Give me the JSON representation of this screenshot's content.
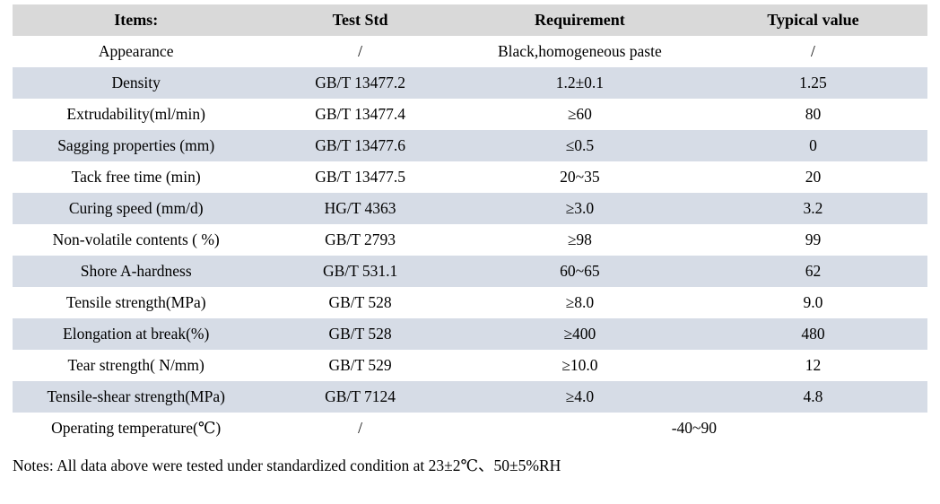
{
  "table": {
    "columns": [
      {
        "key": "item",
        "label": "Items:"
      },
      {
        "key": "std",
        "label": "Test Std"
      },
      {
        "key": "req",
        "label": "Requirement"
      },
      {
        "key": "typ",
        "label": "Typical value"
      }
    ],
    "colors": {
      "header_bg": "#d9d9d9",
      "stripe_bg": "#d6dce6",
      "text": "#000000",
      "page_bg": "#ffffff"
    },
    "rows": [
      {
        "item": "Appearance",
        "std": "/",
        "req": "Black,homogeneous paste",
        "typ": "/"
      },
      {
        "item": "Density",
        "std": "GB/T 13477.2",
        "req": "1.2±0.1",
        "typ": "1.25"
      },
      {
        "item": "Extrudability(ml/min)",
        "std": "GB/T 13477.4",
        "req": "≥60",
        "typ": "80"
      },
      {
        "item": "Sagging properties (mm)",
        "std": "GB/T 13477.6",
        "req": "≤0.5",
        "typ": "0"
      },
      {
        "item": "Tack free time (min)",
        "std": "GB/T 13477.5",
        "req": "20~35",
        "typ": "20"
      },
      {
        "item": "Curing speed (mm/d)",
        "std": "HG/T 4363",
        "req": "≥3.0",
        "typ": "3.2"
      },
      {
        "item": "Non-volatile contents ( %)",
        "std": "GB/T 2793",
        "req": "≥98",
        "typ": "99"
      },
      {
        "item": "Shore A-hardness",
        "std": "GB/T 531.1",
        "req": "60~65",
        "typ": "62"
      },
      {
        "item": "Tensile strength(MPa)",
        "std": "GB/T 528",
        "req": "≥8.0",
        "typ": "9.0"
      },
      {
        "item": "Elongation at break(%)",
        "std": "GB/T 528",
        "req": "≥400",
        "typ": "480"
      },
      {
        "item": "Tear strength( N/mm)",
        "std": "GB/T 529",
        "req": "≥10.0",
        "typ": "12"
      },
      {
        "item": "Tensile-shear strength(MPa)",
        "std": "GB/T 7124",
        "req": "≥4.0",
        "typ": "4.8"
      },
      {
        "item": "Operating temperature(℃)",
        "std": "/",
        "req": "-40~90",
        "req_colspan": 2
      }
    ]
  },
  "notes": {
    "text": "Notes: All data above were tested under standardized condition at 23±2℃、50±5%RH"
  }
}
